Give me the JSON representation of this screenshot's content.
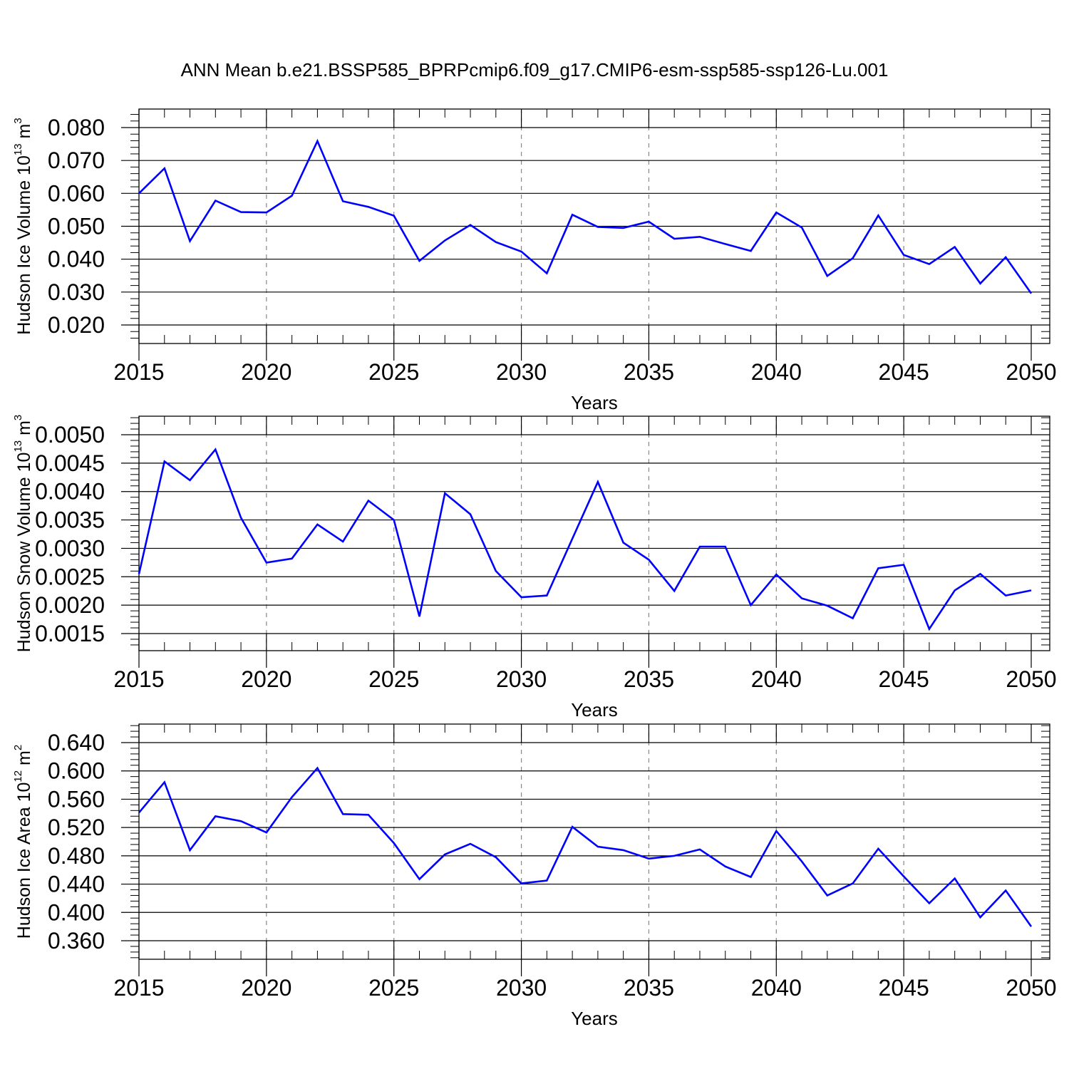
{
  "title": "ANN Mean b.e21.BSSP585_BPRPcmip6.f09_g17.CMIP6-esm-ssp585-ssp126-Lu.001",
  "chart_data": [
    {
      "type": "line",
      "title": "",
      "xlabel": "Years",
      "ylabel": {
        "main": "Hudson Ice Volume 10",
        "exponent": "13",
        "unit": " m",
        "unit_exponent": "3"
      },
      "xlim": [
        2015,
        2050
      ],
      "ylim": [
        0.02,
        0.08
      ],
      "xticks": [
        2015,
        2020,
        2025,
        2030,
        2035,
        2040,
        2045,
        2050
      ],
      "xtick_labels": [
        "2015",
        "2020",
        "2025",
        "2030",
        "2035",
        "2040",
        "2045",
        "2050"
      ],
      "yticks": [
        0.02,
        0.03,
        0.04,
        0.05,
        0.06,
        0.07,
        0.08
      ],
      "ytick_labels": [
        "0.020",
        "0.030",
        "0.040",
        "0.050",
        "0.060",
        "0.070",
        "0.080"
      ],
      "grid": "x-dashed",
      "x": [
        2015,
        2016,
        2017,
        2018,
        2019,
        2020,
        2021,
        2022,
        2023,
        2024,
        2025,
        2026,
        2027,
        2028,
        2029,
        2030,
        2031,
        2032,
        2033,
        2034,
        2035,
        2036,
        2037,
        2038,
        2039,
        2040,
        2041,
        2042,
        2043,
        2044,
        2045,
        2046,
        2047,
        2048,
        2049,
        2050
      ],
      "series": [
        {
          "color": "#0000ff",
          "values": [
            0.06,
            0.0676,
            0.0455,
            0.0578,
            0.0543,
            0.0542,
            0.0593,
            0.0759,
            0.0576,
            0.0559,
            0.0532,
            0.0395,
            0.0457,
            0.0504,
            0.0452,
            0.0423,
            0.0357,
            0.0535,
            0.0498,
            0.0495,
            0.0514,
            0.0462,
            0.0468,
            0.0446,
            0.0425,
            0.0542,
            0.0496,
            0.0349,
            0.0403,
            0.0533,
            0.0413,
            0.0385,
            0.0437,
            0.0326,
            0.0406,
            0.0296
          ]
        }
      ]
    },
    {
      "type": "line",
      "title": "",
      "xlabel": "Years",
      "ylabel": {
        "main": "Hudson Snow Volume 10",
        "exponent": "13",
        "unit": " m",
        "unit_exponent": "3"
      },
      "xlim": [
        2015,
        2050
      ],
      "ylim": [
        0.0015,
        0.005
      ],
      "xticks": [
        2015,
        2020,
        2025,
        2030,
        2035,
        2040,
        2045,
        2050
      ],
      "xtick_labels": [
        "2015",
        "2020",
        "2025",
        "2030",
        "2035",
        "2040",
        "2045",
        "2050"
      ],
      "yticks": [
        0.0015,
        0.002,
        0.0025,
        0.003,
        0.0035,
        0.004,
        0.0045,
        0.005
      ],
      "ytick_labels": [
        "0.0015",
        "0.0020",
        "0.0025",
        "0.0030",
        "0.0035",
        "0.0040",
        "0.0045",
        "0.0050"
      ],
      "grid": "x-dashed",
      "x": [
        2015,
        2016,
        2017,
        2018,
        2019,
        2020,
        2021,
        2022,
        2023,
        2024,
        2025,
        2026,
        2027,
        2028,
        2029,
        2030,
        2031,
        2032,
        2033,
        2034,
        2035,
        2036,
        2037,
        2038,
        2039,
        2040,
        2041,
        2042,
        2043,
        2044,
        2045,
        2046,
        2047,
        2048,
        2049,
        2050
      ],
      "series": [
        {
          "color": "#0000ff",
          "values": [
            0.00255,
            0.00453,
            0.0042,
            0.00474,
            0.00354,
            0.00275,
            0.00282,
            0.00342,
            0.00312,
            0.00384,
            0.0035,
            0.0018,
            0.00397,
            0.0036,
            0.0026,
            0.00214,
            0.00217,
            0.00317,
            0.00417,
            0.0031,
            0.0028,
            0.00225,
            0.00303,
            0.00303,
            0.002,
            0.00254,
            0.00212,
            0.00199,
            0.00177,
            0.00265,
            0.00271,
            0.00158,
            0.00226,
            0.00255,
            0.00217,
            0.00226
          ]
        }
      ]
    },
    {
      "type": "line",
      "title": "",
      "xlabel": "Years",
      "ylabel": {
        "main": "Hudson Ice Area 10",
        "exponent": "12",
        "unit": " m",
        "unit_exponent": "2"
      },
      "xlim": [
        2015,
        2050
      ],
      "ylim": [
        0.36,
        0.64
      ],
      "xticks": [
        2015,
        2020,
        2025,
        2030,
        2035,
        2040,
        2045,
        2050
      ],
      "xtick_labels": [
        "2015",
        "2020",
        "2025",
        "2030",
        "2035",
        "2040",
        "2045",
        "2050"
      ],
      "yticks": [
        0.36,
        0.4,
        0.44,
        0.48,
        0.52,
        0.56,
        0.6,
        0.64
      ],
      "ytick_labels": [
        "0.360",
        "0.400",
        "0.440",
        "0.480",
        "0.520",
        "0.560",
        "0.600",
        "0.640"
      ],
      "grid": "x-dashed",
      "x": [
        2015,
        2016,
        2017,
        2018,
        2019,
        2020,
        2021,
        2022,
        2023,
        2024,
        2025,
        2026,
        2027,
        2028,
        2029,
        2030,
        2031,
        2032,
        2033,
        2034,
        2035,
        2036,
        2037,
        2038,
        2039,
        2040,
        2041,
        2042,
        2043,
        2044,
        2045,
        2046,
        2047,
        2048,
        2049,
        2050
      ],
      "series": [
        {
          "color": "#0000ff",
          "values": [
            0.541,
            0.584,
            0.488,
            0.536,
            0.529,
            0.513,
            0.563,
            0.604,
            0.539,
            0.538,
            0.498,
            0.447,
            0.482,
            0.497,
            0.478,
            0.441,
            0.445,
            0.521,
            0.493,
            0.488,
            0.476,
            0.48,
            0.489,
            0.465,
            0.45,
            0.515,
            0.472,
            0.424,
            0.441,
            0.49,
            0.451,
            0.413,
            0.448,
            0.393,
            0.431,
            0.38
          ]
        }
      ]
    }
  ]
}
